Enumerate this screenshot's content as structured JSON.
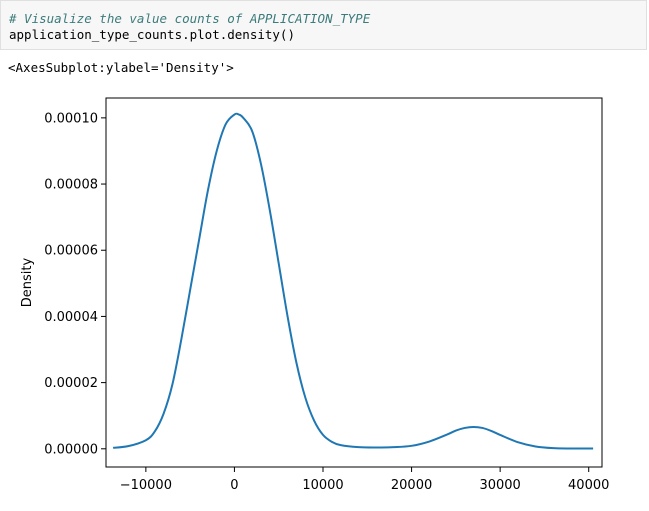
{
  "code_cell": {
    "comment": "# Visualize the value counts of APPLICATION_TYPE",
    "code": "application_type_counts.plot.density()"
  },
  "output": {
    "repr": "<AxesSubplot:ylabel='Density'>"
  },
  "chart_data": {
    "type": "line",
    "ylabel": "Density",
    "xlabel": "",
    "xlim": [
      -14500,
      41500
    ],
    "ylim": [
      -5.5e-06,
      0.000106
    ],
    "x_ticks": [
      -10000,
      0,
      10000,
      20000,
      30000,
      40000
    ],
    "x_tick_labels": [
      "−10000",
      "0",
      "10000",
      "20000",
      "30000",
      "40000"
    ],
    "y_ticks": [
      0,
      2e-05,
      4e-05,
      6e-05,
      8e-05,
      0.0001
    ],
    "y_tick_labels": [
      "0.00000",
      "0.00002",
      "0.00004",
      "0.00006",
      "0.00008",
      "0.00010"
    ],
    "line_color": "#1f77b4",
    "series": [
      {
        "x": [
          -13700,
          -12000,
          -10000,
          -9000,
          -8000,
          -7000,
          -6000,
          -5000,
          -4000,
          -3000,
          -2000,
          -1000,
          0,
          500,
          1000,
          2000,
          3000,
          4000,
          5000,
          6000,
          7000,
          8000,
          9000,
          10000,
          11000,
          12000,
          14000,
          16000,
          18000,
          20000,
          22000,
          24000,
          25000,
          26000,
          27000,
          28000,
          29000,
          30000,
          32000,
          34000,
          36000,
          38000,
          40500
        ],
        "y": [
          3e-07,
          8e-07,
          2.6e-06,
          5.2e-06,
          1.06e-05,
          1.95e-05,
          3.3e-05,
          4.8e-05,
          6.3e-05,
          7.8e-05,
          9e-05,
          9.8e-05,
          0.000101,
          0.000101,
          0.0001,
          9.6e-05,
          8.6e-05,
          7.2e-05,
          5.6e-05,
          4e-05,
          2.6e-05,
          1.55e-05,
          8.5e-06,
          4.2e-06,
          2.1e-06,
          1.1e-06,
          5e-07,
          4e-07,
          5e-07,
          9e-07,
          2.2e-06,
          4.3e-06,
          5.5e-06,
          6.3e-06,
          6.6e-06,
          6.3e-06,
          5.4e-06,
          4.2e-06,
          2e-06,
          7e-07,
          2e-07,
          1e-07,
          1e-07
        ]
      }
    ]
  }
}
